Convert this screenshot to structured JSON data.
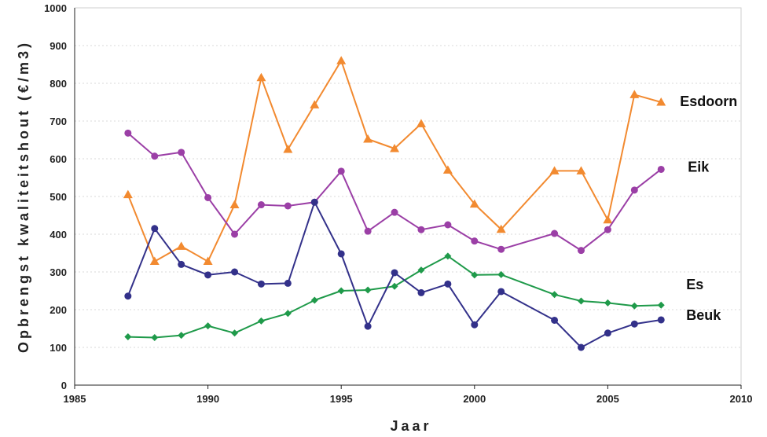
{
  "chart_data": {
    "type": "line",
    "title": "",
    "xlabel": "Jaar",
    "ylabel": "Opbrengst kwaliteitshout (€/m3)",
    "xlim": [
      1985,
      2010
    ],
    "ylim": [
      0,
      1000
    ],
    "xticks": [
      1985,
      1990,
      1995,
      2000,
      2005,
      2010
    ],
    "yticks": [
      0,
      100,
      200,
      300,
      400,
      500,
      600,
      700,
      800,
      900,
      1000
    ],
    "grid": true,
    "legend": "labels at line ends (right)",
    "series": [
      {
        "name": "Esdoorn",
        "color": "#f28a30",
        "marker": "triangle",
        "x": [
          1987,
          1988,
          1989,
          1990,
          1991,
          1992,
          1993,
          1994,
          1995,
          1996,
          1997,
          1998,
          1999,
          2000,
          2001,
          2003,
          2004,
          2005,
          2006,
          2007
        ],
        "y": [
          505,
          328,
          368,
          328,
          478,
          815,
          625,
          743,
          860,
          652,
          627,
          693,
          570,
          480,
          413,
          568,
          568,
          438,
          770,
          750
        ]
      },
      {
        "name": "Eik",
        "color": "#9b3fa6",
        "marker": "circle",
        "x": [
          1987,
          1988,
          1989,
          1990,
          1991,
          1992,
          1993,
          1994,
          1995,
          1996,
          1997,
          1998,
          1999,
          2000,
          2001,
          2003,
          2004,
          2005,
          2006,
          2007
        ],
        "y": [
          668,
          607,
          617,
          497,
          400,
          478,
          475,
          485,
          567,
          408,
          458,
          412,
          425,
          382,
          360,
          402,
          357,
          412,
          517,
          572
        ]
      },
      {
        "name": "Es",
        "color": "#1f9a4a",
        "marker": "diamond",
        "x": [
          1987,
          1988,
          1989,
          1990,
          1991,
          1992,
          1993,
          1994,
          1995,
          1996,
          1997,
          1998,
          1999,
          2000,
          2001,
          2003,
          2004,
          2005,
          2006,
          2007
        ],
        "y": [
          128,
          126,
          132,
          157,
          138,
          170,
          190,
          225,
          250,
          252,
          262,
          305,
          342,
          292,
          293,
          240,
          223,
          218,
          210,
          212
        ]
      },
      {
        "name": "Beuk",
        "color": "#33318a",
        "marker": "circle",
        "x": [
          1987,
          1988,
          1989,
          1990,
          1991,
          1992,
          1993,
          1994,
          1995,
          1996,
          1997,
          1998,
          1999,
          2000,
          2001,
          2003,
          2004,
          2005,
          2006,
          2007
        ],
        "y": [
          236,
          415,
          320,
          292,
          300,
          268,
          270,
          485,
          348,
          156,
          298,
          245,
          268,
          160,
          248,
          172,
          100,
          138,
          162,
          173
        ]
      }
    ]
  }
}
